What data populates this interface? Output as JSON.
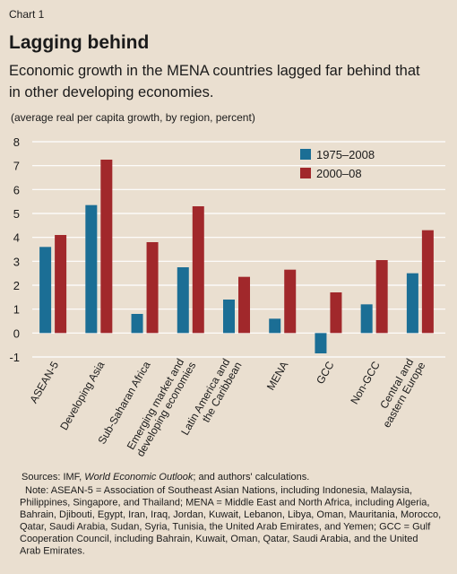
{
  "chart_data": {
    "type": "bar",
    "label": "Chart 1",
    "title": "Lagging behind",
    "subtitle": [
      "Economic growth in the MENA countries lagged far behind that",
      "in other developing economies."
    ],
    "y_label": "(average real per capita growth, by region, percent)",
    "categories": [
      "ASEAN-5",
      "Developing Asia",
      "Sub-Saharan Africa",
      "Emerging market and\ndeveloping economies",
      "Latin America and\nthe Caribbean",
      "MENA",
      "GCC",
      "Non-GCC",
      "Central and\neastern Europe"
    ],
    "series": [
      {
        "name": "1975–2008",
        "color": "#1b6e95",
        "values": [
          3.6,
          5.35,
          0.8,
          2.75,
          1.4,
          0.6,
          -0.85,
          1.2,
          2.5
        ]
      },
      {
        "name": "2000–08",
        "color": "#a1282b",
        "values": [
          4.1,
          7.25,
          3.8,
          5.3,
          2.35,
          2.65,
          1.7,
          3.05,
          4.3
        ]
      }
    ],
    "ylim": [
      -1,
      8
    ],
    "yticks": [
      -1,
      0,
      1,
      2,
      3,
      4,
      5,
      6,
      7,
      8
    ],
    "grid": true,
    "legend": "top-right",
    "sources": [
      "Sources: IMF, ",
      "World Economic Outlook",
      "; and authors' calculations."
    ],
    "note": [
      "Note: ASEAN-5 = Association of Southeast Asian Nations, including Indonesia, Malaysia,",
      "Philippines, Singapore, and Thailand; MENA = Middle East and North Africa, including Algeria,",
      "Bahrain, Djibouti, Egypt, Iran, Iraq, Jordan, Kuwait, Lebanon, Libya, Oman, Mauritania, Morocco,",
      "Qatar, Saudi Arabia, Sudan, Syria, Tunisia, the United Arab Emirates, and Yemen; GCC = Gulf",
      "Cooperation Council, including Bahrain, Kuwait, Oman, Qatar, Saudi Arabia, and the United",
      "Arab Emirates."
    ]
  }
}
